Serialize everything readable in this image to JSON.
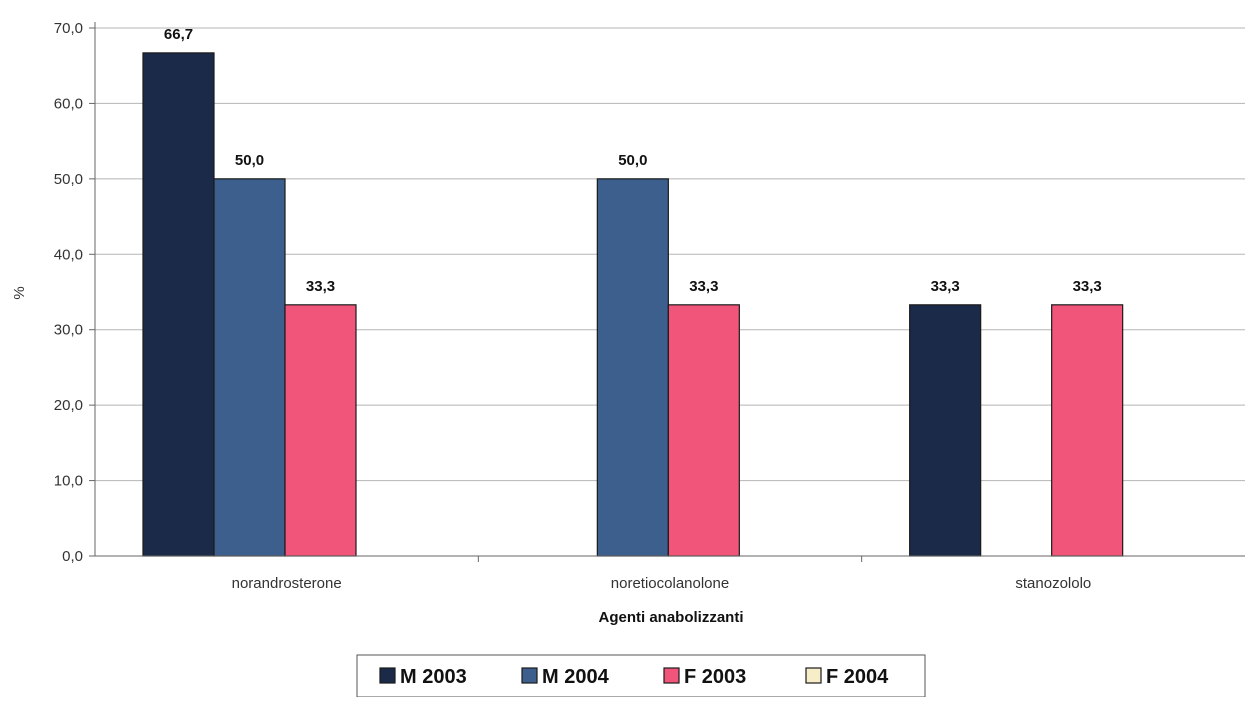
{
  "chart_data": {
    "type": "bar",
    "categories": [
      "norandrosterone",
      "noretiocolanolone",
      "stanozololo"
    ],
    "series": [
      {
        "name": "M 2003",
        "color": "#1b2a48",
        "values": [
          66.7,
          null,
          33.3
        ]
      },
      {
        "name": "M 2004",
        "color": "#3d5f8d",
        "values": [
          50.0,
          50.0,
          null
        ]
      },
      {
        "name": "F 2003",
        "color": "#f2557a",
        "values": [
          33.3,
          33.3,
          33.3
        ]
      },
      {
        "name": "F 2004",
        "color": "#f7edc8",
        "values": [
          null,
          null,
          null
        ]
      }
    ],
    "value_labels": [
      [
        "66,7",
        null,
        "33,3"
      ],
      [
        "50,0",
        "50,0",
        null
      ],
      [
        "33,3",
        "33,3",
        "33,3"
      ],
      [
        null,
        null,
        null
      ]
    ],
    "xlabel": "Agenti anabolizzanti",
    "ylabel": "%",
    "ylim": [
      0,
      70
    ],
    "yticks": [
      0,
      10,
      20,
      30,
      40,
      50,
      60,
      70
    ],
    "ytick_labels": [
      "0,0",
      "10,0",
      "20,0",
      "30,0",
      "40,0",
      "50,0",
      "60,0",
      "70,0"
    ],
    "grid": true,
    "legend_position": "bottom"
  }
}
